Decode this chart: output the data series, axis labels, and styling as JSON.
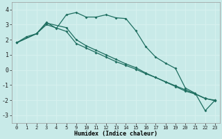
{
  "bg_color": "#c8eae8",
  "line_color": "#1e6e60",
  "xlabel": "Humidex (Indice chaleur)",
  "ylim": [
    -3.5,
    4.5
  ],
  "yticks": [
    -3,
    -2,
    -1,
    0,
    1,
    2,
    3,
    4
  ],
  "xtick_labels": [
    "0",
    "1",
    "2",
    "3",
    "4",
    "5",
    "9",
    "10",
    "11",
    "12",
    "13",
    "14",
    "15",
    "16",
    "17",
    "18",
    "19",
    "20",
    "21",
    "22",
    "23"
  ],
  "series1_idx": [
    0,
    1,
    2,
    3,
    4,
    5,
    6,
    7,
    8,
    9,
    10,
    11,
    12,
    13,
    14,
    15,
    16,
    17,
    18,
    19,
    20
  ],
  "series1_y": [
    1.8,
    2.2,
    2.4,
    3.15,
    2.75,
    3.65,
    3.8,
    3.5,
    3.5,
    3.65,
    3.45,
    3.4,
    2.6,
    1.55,
    0.85,
    0.45,
    0.1,
    -1.2,
    -1.55,
    -2.7,
    -2.0
  ],
  "series2_idx": [
    0,
    2,
    3,
    5,
    6,
    7,
    8,
    9,
    10,
    11,
    12,
    13,
    14,
    15,
    16,
    17,
    18,
    19,
    20
  ],
  "series2_y": [
    1.8,
    2.4,
    3.1,
    2.8,
    2.0,
    1.6,
    1.3,
    1.0,
    0.7,
    0.4,
    0.15,
    -0.2,
    -0.5,
    -0.8,
    -1.1,
    -1.4,
    -1.6,
    -1.9,
    -2.0
  ],
  "series3_idx": [
    0,
    2,
    3,
    5,
    6,
    7,
    8,
    9,
    10,
    11,
    12,
    13,
    14,
    15,
    16,
    17,
    18,
    19,
    20
  ],
  "series3_y": [
    1.8,
    2.4,
    3.0,
    2.55,
    1.75,
    1.45,
    1.15,
    0.85,
    0.55,
    0.3,
    0.05,
    -0.25,
    -0.5,
    -0.78,
    -1.05,
    -1.32,
    -1.58,
    -1.88,
    -2.05
  ],
  "red_grid_color": "#f0aaaa",
  "white_grid_color": "#e8f8f8",
  "marker": "D",
  "markersize": 2.0
}
